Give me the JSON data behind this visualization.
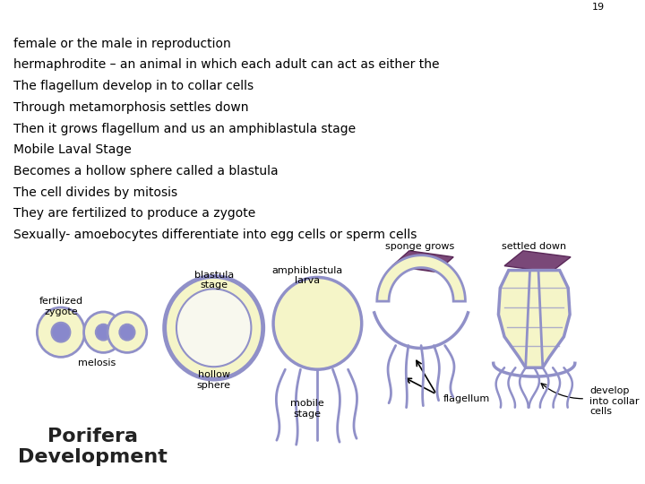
{
  "bg_color": "#ffffff",
  "purple": "#9090c8",
  "purple_dark": "#6060a0",
  "yellow": "#f5f5c8",
  "nucleus_color": "#8888cc",
  "maroon": "#6b3060",
  "title": "Porifera\nDevelopment",
  "lines": [
    "Sexually- amoebocytes differentiate into egg cells or sperm cells",
    "They are fertilized to produce a zygote",
    "The cell divides by mitosis",
    "Becomes a hollow sphere called a blastula",
    "Mobile Laval Stage",
    "Then it grows flagellum and us an amphiblastula stage",
    "Through metamorphosis settles down",
    "The flagellum develop in to collar cells",
    "hermaphrodite – an animal in which each adult can act as either the",
    "female or the male in reproduction"
  ],
  "page_number": "19"
}
